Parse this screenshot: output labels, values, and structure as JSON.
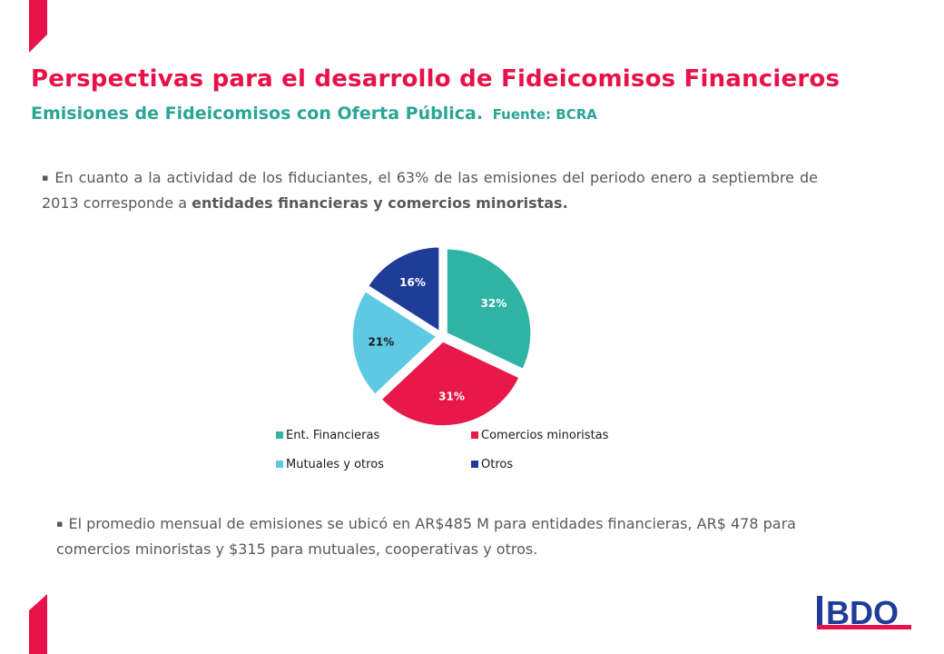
{
  "slide": {
    "title": "Perspectivas para el desarrollo de Fideicomisos Financieros",
    "subtitle": "Emisiones de Fideicomisos con Oferta Pública.",
    "source": "Fuente: BCRA",
    "bullet_char": "▪",
    "paragraph1": {
      "text": "En cuanto a la actividad de los fiduciantes, el 63% de las emisiones del periodo enero a septiembre de 2013 corresponde a ",
      "bold": "entidades financieras y comercios minoristas."
    },
    "paragraph2": {
      "text": "El promedio mensual de emisiones se ubicó en AR$485 M para entidades financieras, AR$ 478 para comercios minoristas y $315 para mutuales, cooperativas y otros."
    },
    "logo_text": "BDO"
  },
  "colors": {
    "title": "#e8114a",
    "subtitle": "#2aa596",
    "body_text": "#595959",
    "accent_red": "#e8114a",
    "logo_blue": "#1f3c99",
    "logo_red": "#e8114a"
  },
  "chart_data": {
    "type": "pie",
    "exploded": true,
    "start_angle": "12 o'clock, clockwise",
    "legend_position": "bottom",
    "categories": [
      "Ent. Financieras",
      "Comercios minoristas",
      "Mutuales y otros",
      "Otros"
    ],
    "values": [
      32,
      31,
      21,
      16
    ],
    "labels": [
      "32%",
      "31%",
      "21%",
      "16%"
    ],
    "colors": [
      "#2fb3a3",
      "#e8184a",
      "#5ec9e3",
      "#1f3c99"
    ]
  }
}
